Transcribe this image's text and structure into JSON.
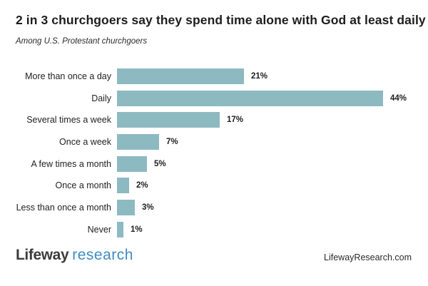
{
  "title": "2 in 3 churchgoers say they spend time alone with God at least daily",
  "subtitle": "Among U.S. Protestant churchgoers",
  "chart_data": {
    "type": "bar",
    "orientation": "horizontal",
    "categories": [
      "More than once a day",
      "Daily",
      "Several times a week",
      "Once a week",
      "A few times a month",
      "Once a month",
      "Less than once a month",
      "Never"
    ],
    "values": [
      21,
      44,
      17,
      7,
      5,
      2,
      3,
      1
    ],
    "value_labels": [
      "21%",
      "44%",
      "17%",
      "7%",
      "5%",
      "2%",
      "3%",
      "1%"
    ],
    "title": "2 in 3 churchgoers say they spend time alone with God at least daily",
    "xlabel": "",
    "ylabel": "",
    "xlim": [
      0,
      47
    ],
    "grid": false,
    "legend": "none",
    "bar_color": "#8dbac1"
  },
  "footer": {
    "logo_brand": "Lifeway",
    "logo_sub": "research",
    "website": "LifewayResearch.com"
  },
  "colors": {
    "bar": "#8dbac1",
    "title_text": "#1e1e1e",
    "logo_brand": "#3c3c3e",
    "logo_sub_blue": "#3d8cc3",
    "background": "#ffffff"
  }
}
